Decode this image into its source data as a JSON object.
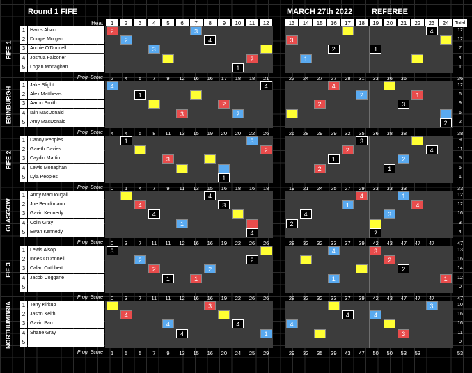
{
  "header": {
    "round": "Round 1 FIFE",
    "date": "MARCH 27th 2022",
    "referee": "REFEREE",
    "heat_label": "Heat",
    "total_label": "Total",
    "prog_label": "Prog. Score"
  },
  "heats": [
    "1",
    "2",
    "3",
    "4",
    "5",
    "6",
    "7",
    "8",
    "9",
    "10",
    "11",
    "12",
    "13",
    "14",
    "15",
    "16",
    "17",
    "18",
    "19",
    "20",
    "21",
    "22",
    "23",
    "24"
  ],
  "teams": [
    {
      "name": "FIFE 1",
      "riders": [
        "Harris Alsop",
        "Dougie Morgan",
        "Archie O'Donnell",
        "Joshua Falconer",
        "Logan Monaghan"
      ],
      "totals": [
        "12",
        "12",
        "7",
        "4",
        "1"
      ],
      "marks": [
        [
          0,
          0,
          "red",
          "2"
        ],
        [
          6,
          0,
          "blue",
          "3"
        ],
        [
          16,
          0,
          "yellow",
          ""
        ],
        [
          22,
          0,
          "white",
          "4"
        ],
        [
          1,
          1,
          "blue",
          "2"
        ],
        [
          7,
          1,
          "white",
          "4"
        ],
        [
          12,
          1,
          "red",
          "3"
        ],
        [
          23,
          1,
          "yellow",
          ""
        ],
        [
          3,
          2,
          "blue",
          "3"
        ],
        [
          11,
          2,
          "yellow",
          ""
        ],
        [
          15,
          2,
          "white",
          "2"
        ],
        [
          18,
          2,
          "white",
          "1"
        ],
        [
          4,
          3,
          "yellow",
          ""
        ],
        [
          10,
          3,
          "red",
          "2"
        ],
        [
          13,
          3,
          "blue",
          "1"
        ],
        [
          21,
          3,
          "yellow",
          ""
        ],
        [
          9,
          4,
          "white",
          "1"
        ]
      ],
      "prog": [
        "2",
        "4",
        "5",
        "7",
        "9",
        "12",
        "16",
        "16",
        "17",
        "18",
        "18",
        "21",
        "22",
        "24",
        "27",
        "27",
        "28",
        "31",
        "33",
        "36",
        "36"
      ],
      "prog_total": "36"
    },
    {
      "name": "EDINBURGH",
      "riders": [
        "Jake Slight",
        "Alex Matthews",
        "Aaron Smith",
        "Iain MacDonald",
        "Amy MacDonald"
      ],
      "totals": [
        "12",
        "6",
        "9",
        "6",
        "2"
      ],
      "marks": [
        [
          0,
          0,
          "blue",
          "4"
        ],
        [
          11,
          0,
          "white",
          "4"
        ],
        [
          15,
          0,
          "red",
          "4"
        ],
        [
          19,
          0,
          "yellow",
          ""
        ],
        [
          2,
          1,
          "white",
          "1"
        ],
        [
          6,
          1,
          "yellow",
          ""
        ],
        [
          17,
          1,
          "blue",
          "2"
        ],
        [
          21,
          1,
          "red",
          "1"
        ],
        [
          3,
          2,
          "yellow",
          ""
        ],
        [
          8,
          2,
          "red",
          "2"
        ],
        [
          14,
          2,
          "red",
          "2"
        ],
        [
          20,
          2,
          "white",
          "3"
        ],
        [
          5,
          3,
          "red",
          "3"
        ],
        [
          9,
          3,
          "blue",
          "2"
        ],
        [
          12,
          3,
          "yellow",
          ""
        ],
        [
          23,
          3,
          "blue",
          ""
        ],
        [
          23,
          4,
          "white",
          "2"
        ]
      ],
      "prog": [
        "4",
        "4",
        "5",
        "8",
        "11",
        "13",
        "15",
        "19",
        "20",
        "20",
        "22",
        "26",
        "26",
        "28",
        "29",
        "29",
        "32",
        "35",
        "36",
        "38",
        "38"
      ],
      "prog_total": "38"
    },
    {
      "name": "FIFE 2",
      "riders": [
        "Danny Peoples",
        "Gareth Davies",
        "Caydin Martin",
        "Lewis Monaghan",
        "Lyla Peoples"
      ],
      "totals": [
        "9",
        "11",
        "5",
        "5",
        "1"
      ],
      "marks": [
        [
          1,
          0,
          "white",
          "1"
        ],
        [
          10,
          0,
          "blue",
          "3"
        ],
        [
          17,
          0,
          "white",
          "3"
        ],
        [
          21,
          0,
          "yellow",
          ""
        ],
        [
          2,
          1,
          "yellow",
          ""
        ],
        [
          11,
          1,
          "red",
          "2"
        ],
        [
          16,
          1,
          "red",
          "2"
        ],
        [
          22,
          1,
          "white",
          "4"
        ],
        [
          4,
          2,
          "red",
          "3"
        ],
        [
          7,
          2,
          "yellow",
          ""
        ],
        [
          15,
          2,
          "white",
          "1"
        ],
        [
          20,
          2,
          "blue",
          "2"
        ],
        [
          5,
          3,
          "yellow",
          ""
        ],
        [
          8,
          3,
          "blue",
          ""
        ],
        [
          14,
          3,
          "red",
          "2"
        ],
        [
          19,
          3,
          "white",
          "1"
        ],
        [
          8,
          4,
          "white",
          "1"
        ]
      ],
      "prog": [
        "0",
        "1",
        "4",
        "7",
        "9",
        "11",
        "13",
        "15",
        "16",
        "18",
        "16",
        "18",
        "19",
        "21",
        "24",
        "25",
        "27",
        "29",
        "33",
        "33",
        "33"
      ],
      "prog_total": "33"
    },
    {
      "name": "GLASGOW",
      "riders": [
        "Andy MacDougall",
        "Joe Beuckmann",
        "Gavin Kennedy",
        "Colin Gray",
        "Ewan Kennedy"
      ],
      "totals": [
        "12",
        "12",
        "16",
        "3",
        "4"
      ],
      "marks": [
        [
          1,
          0,
          "yellow",
          ""
        ],
        [
          7,
          0,
          "white",
          "4"
        ],
        [
          17,
          0,
          "red",
          "4"
        ],
        [
          20,
          0,
          "blue",
          "1"
        ],
        [
          2,
          1,
          "red",
          "4"
        ],
        [
          8,
          1,
          "white",
          "3"
        ],
        [
          16,
          1,
          "blue",
          "1"
        ],
        [
          21,
          1,
          "red",
          "4"
        ],
        [
          3,
          2,
          "white",
          "4"
        ],
        [
          9,
          2,
          "yellow",
          ""
        ],
        [
          13,
          2,
          "white",
          "4"
        ],
        [
          19,
          2,
          "blue",
          "3"
        ],
        [
          5,
          3,
          "blue",
          "1"
        ],
        [
          10,
          3,
          "red",
          ""
        ],
        [
          12,
          3,
          "white",
          "2"
        ],
        [
          18,
          3,
          "yellow",
          ""
        ],
        [
          10,
          4,
          "white",
          "4"
        ],
        [
          18,
          4,
          "white",
          "2"
        ]
      ],
      "prog": [
        "0",
        "3",
        "7",
        "11",
        "11",
        "12",
        "16",
        "16",
        "19",
        "22",
        "26",
        "26",
        "28",
        "32",
        "32",
        "33",
        "37",
        "39",
        "42",
        "43",
        "47",
        "47",
        "47"
      ],
      "prog_total": "47"
    },
    {
      "name": "FIE 3",
      "riders": [
        "Lewis Alsop",
        "Innes O'Donnell",
        "Calan Cuthbert",
        "Jacob Coggane",
        ""
      ],
      "totals": [
        "13",
        "16",
        "14",
        "12",
        "0"
      ],
      "marks": [
        [
          0,
          0,
          "white",
          "3"
        ],
        [
          11,
          0,
          "yellow",
          ""
        ],
        [
          15,
          0,
          "blue",
          "4"
        ],
        [
          18,
          0,
          "red",
          "3"
        ],
        [
          2,
          1,
          "blue",
          "2"
        ],
        [
          10,
          1,
          "white",
          "2"
        ],
        [
          13,
          1,
          "yellow",
          ""
        ],
        [
          19,
          1,
          "red",
          "2"
        ],
        [
          3,
          2,
          "red",
          "2"
        ],
        [
          7,
          2,
          "blue",
          "2"
        ],
        [
          17,
          2,
          "yellow",
          ""
        ],
        [
          20,
          2,
          "white",
          "2"
        ],
        [
          4,
          3,
          "white",
          "1"
        ],
        [
          6,
          3,
          "red",
          "1"
        ],
        [
          15,
          3,
          "blue",
          "1"
        ],
        [
          23,
          3,
          "red",
          "1"
        ]
      ],
      "prog": [
        "0",
        "3",
        "7",
        "11",
        "11",
        "12",
        "16",
        "16",
        "19",
        "22",
        "26",
        "26",
        "28",
        "32",
        "32",
        "33",
        "37",
        "39",
        "42",
        "43",
        "47",
        "47",
        "47"
      ],
      "prog_total": "47"
    },
    {
      "name": "NORTHUMBRIA",
      "riders": [
        "Terry Kirkup",
        "Jason Keith",
        "Gavin Parr",
        "Shane Gray",
        ""
      ],
      "totals": [
        "10",
        "16",
        "16",
        "11",
        "0"
      ],
      "marks": [
        [
          0,
          0,
          "yellow",
          ""
        ],
        [
          7,
          0,
          "red",
          "3"
        ],
        [
          15,
          0,
          "yellow",
          ""
        ],
        [
          22,
          0,
          "blue",
          "3"
        ],
        [
          1,
          1,
          "red",
          "4"
        ],
        [
          8,
          1,
          "yellow",
          ""
        ],
        [
          16,
          1,
          "white",
          "4"
        ],
        [
          18,
          1,
          "blue",
          "4"
        ],
        [
          4,
          2,
          "blue",
          "4"
        ],
        [
          9,
          2,
          "white",
          "4"
        ],
        [
          12,
          2,
          "blue",
          "4"
        ],
        [
          19,
          2,
          "yellow",
          ""
        ],
        [
          5,
          3,
          "white",
          "4"
        ],
        [
          11,
          3,
          "blue",
          "1"
        ],
        [
          14,
          3,
          "yellow",
          ""
        ],
        [
          20,
          3,
          "red",
          "3"
        ]
      ],
      "prog": [
        "1",
        "5",
        "5",
        "7",
        "9",
        "13",
        "15",
        "16",
        "20",
        "24",
        "25",
        "29",
        "29",
        "32",
        "35",
        "39",
        "43",
        "47",
        "50",
        "50",
        "53",
        "53"
      ],
      "prog_total": "53"
    }
  ]
}
